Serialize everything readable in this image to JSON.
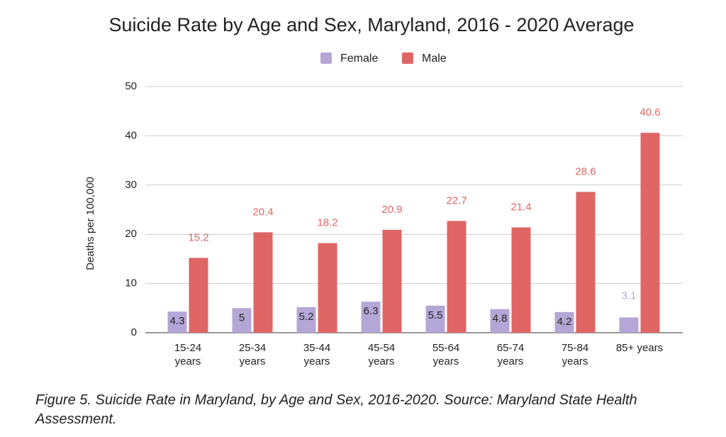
{
  "chart_data": {
    "type": "bar",
    "title": "Suicide Rate by Age and Sex, Maryland, 2016 - 2020 Average",
    "y_label": "Deaths per 100,000",
    "categories": [
      "15-24 years",
      "25-34 years",
      "35-44 years",
      "45-54 years",
      "55-64 years",
      "65-74 years",
      "75-84 years",
      "85+ years"
    ],
    "series": [
      {
        "name": "Female",
        "color": "#b4a7d6",
        "values": [
          4.3,
          5,
          5.2,
          6.3,
          5.5,
          4.8,
          4.2,
          3.1
        ]
      },
      {
        "name": "Male",
        "color": "#e06666",
        "values": [
          15.2,
          20.4,
          18.2,
          20.9,
          22.7,
          21.4,
          28.6,
          40.6
        ]
      }
    ],
    "ylim": [
      0,
      50
    ],
    "yticks": [
      0,
      10,
      20,
      30,
      40,
      50
    ],
    "grid": true,
    "legend": "top",
    "caption": "Figure 5. Suicide Rate in Maryland, by Age and Sex, 2016-2020. Source: Maryland State Health Assessment."
  }
}
